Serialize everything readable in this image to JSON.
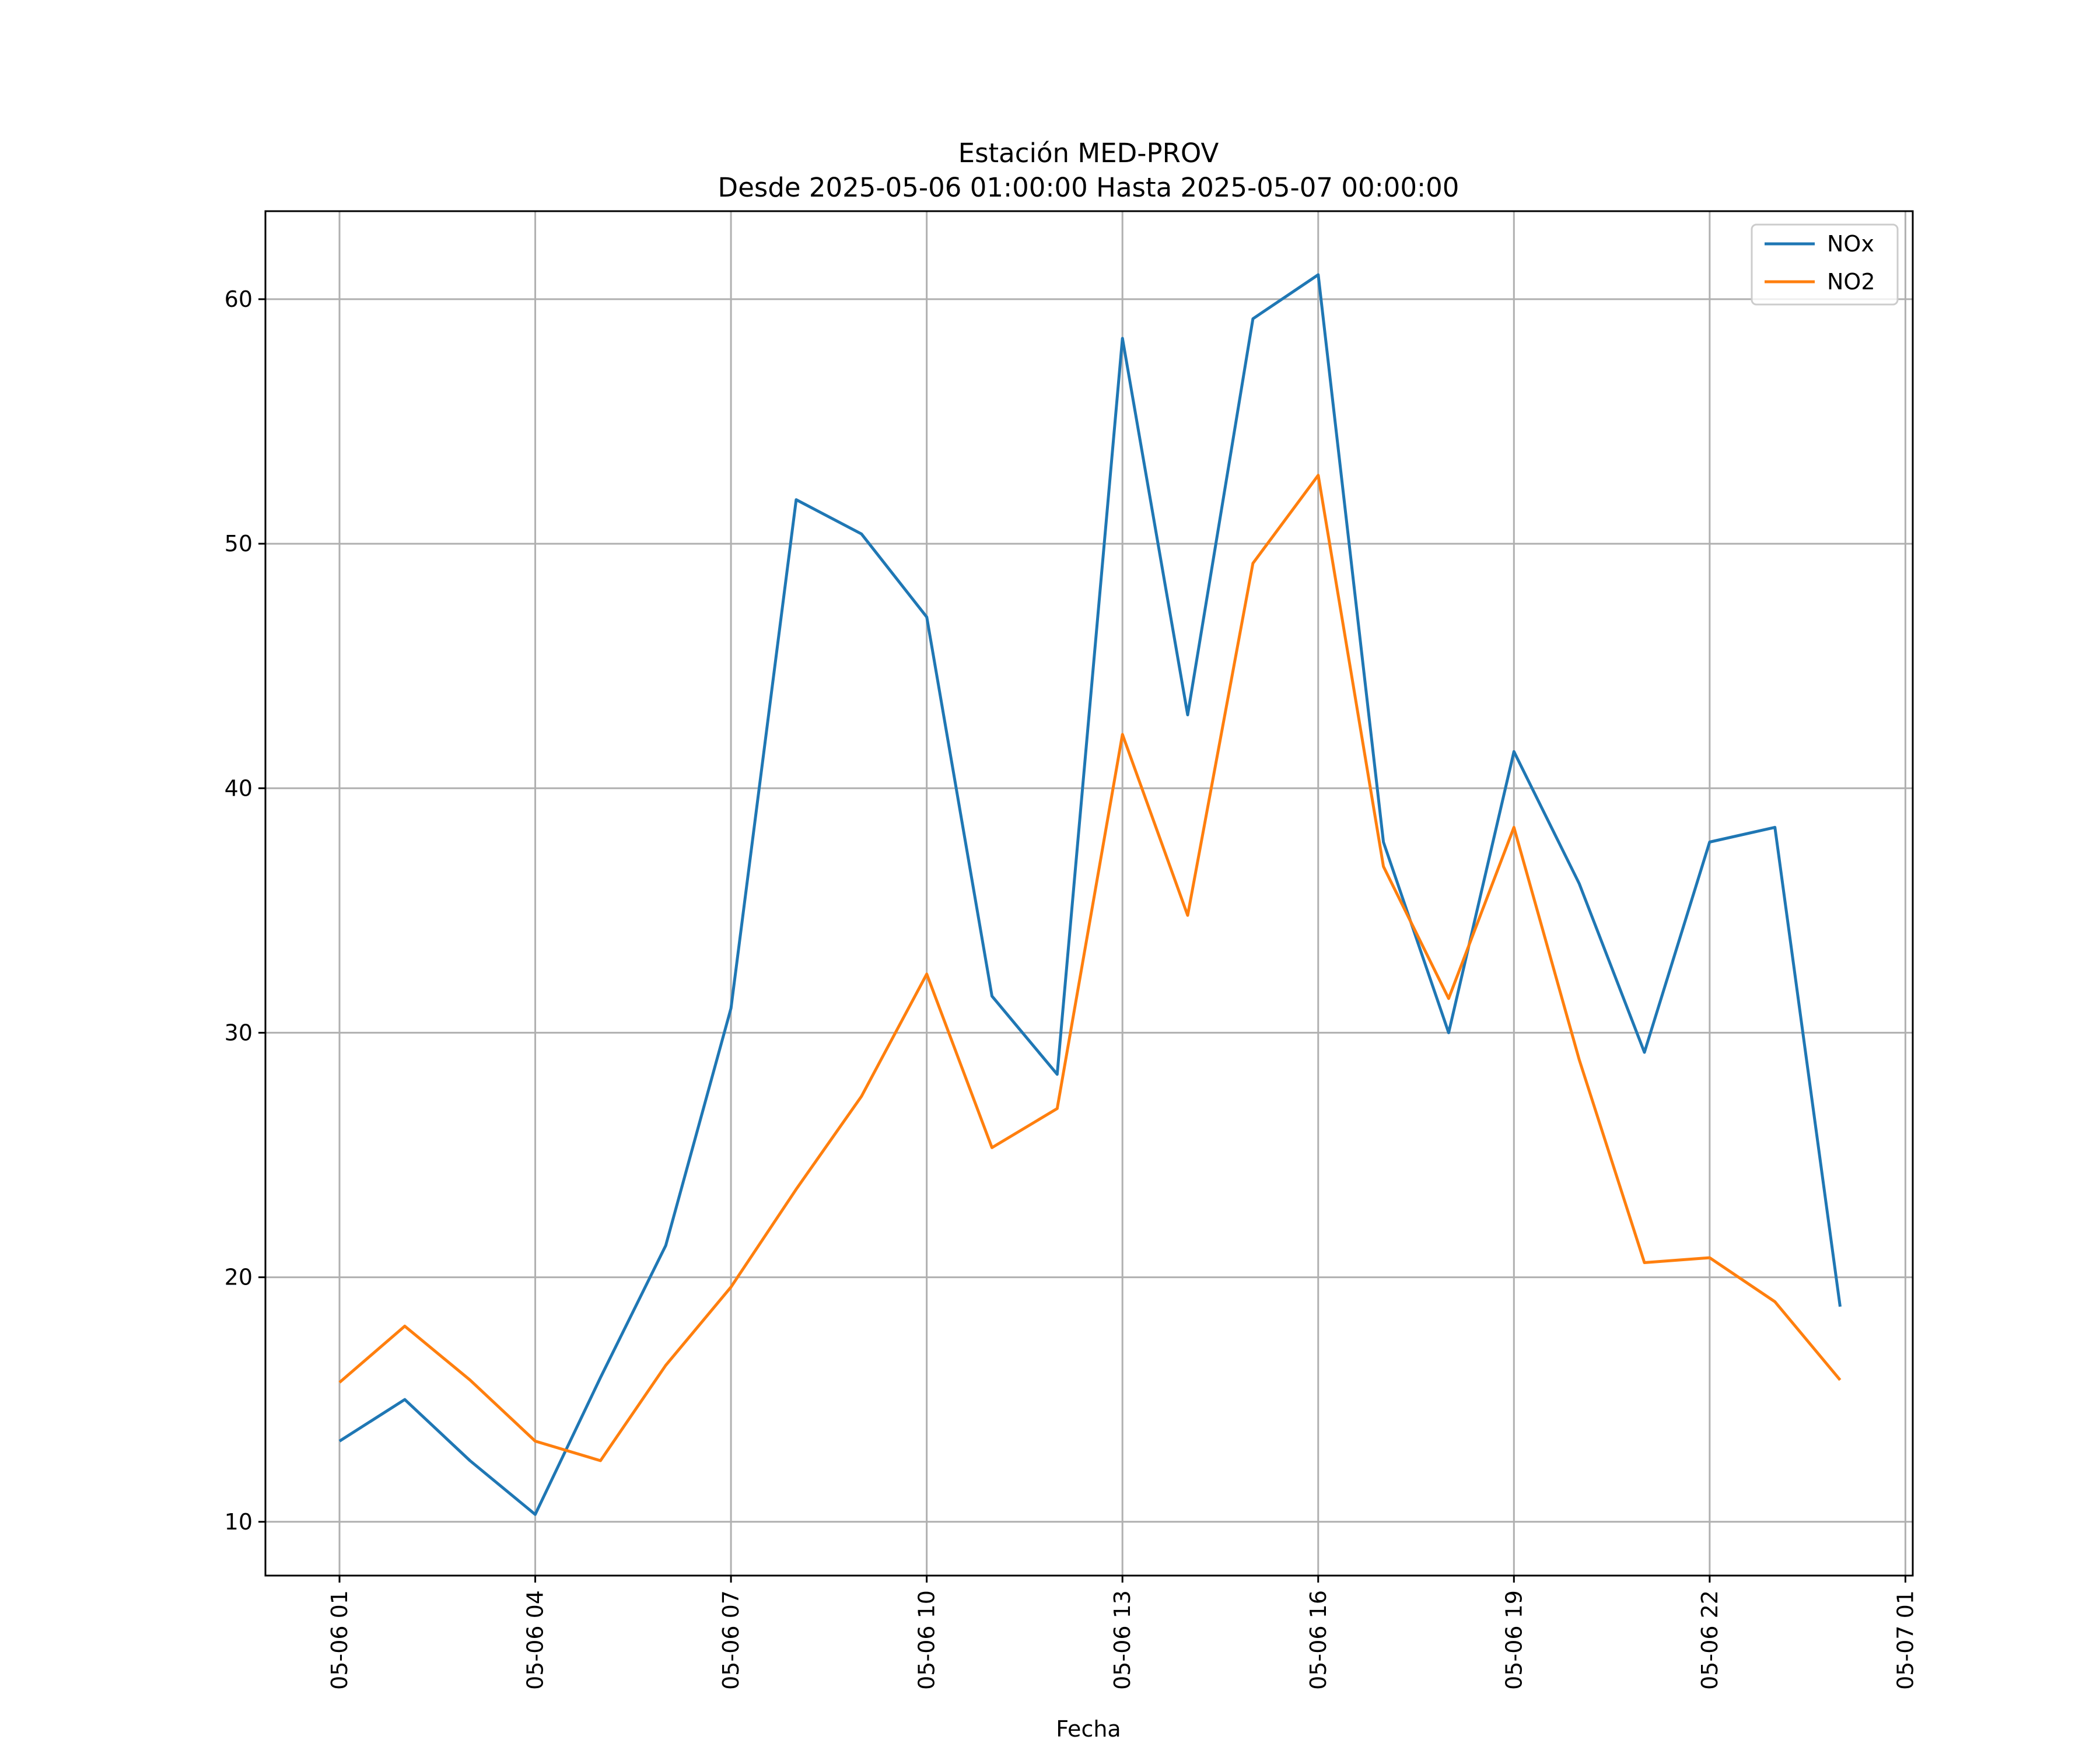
{
  "chart_data": {
    "type": "line",
    "title": "Estación MED-PROV",
    "subtitle": "Desde 2025-05-06 01:00:00 Hasta 2025-05-07 00:00:00",
    "xlabel": "Fecha",
    "ylabel": "",
    "x": [
      "2025-05-06 01:00",
      "2025-05-06 02:00",
      "2025-05-06 03:00",
      "2025-05-06 04:00",
      "2025-05-06 05:00",
      "2025-05-06 06:00",
      "2025-05-06 07:00",
      "2025-05-06 08:00",
      "2025-05-06 09:00",
      "2025-05-06 10:00",
      "2025-05-06 11:00",
      "2025-05-06 12:00",
      "2025-05-06 13:00",
      "2025-05-06 14:00",
      "2025-05-06 15:00",
      "2025-05-06 16:00",
      "2025-05-06 17:00",
      "2025-05-06 18:00",
      "2025-05-06 19:00",
      "2025-05-06 20:00",
      "2025-05-06 21:00",
      "2025-05-06 22:00",
      "2025-05-06 23:00",
      "2025-05-07 00:00"
    ],
    "series": [
      {
        "name": "NOx",
        "color": "#1f77b4",
        "values": [
          13.3,
          15.0,
          12.5,
          10.3,
          15.9,
          21.3,
          31.0,
          51.8,
          50.4,
          47.0,
          31.5,
          28.3,
          58.4,
          43.0,
          59.2,
          61.0,
          37.8,
          30.0,
          41.5,
          36.1,
          29.2,
          37.8,
          38.4,
          18.8
        ]
      },
      {
        "name": "NO2",
        "color": "#ff7f0e",
        "values": [
          15.7,
          18.0,
          15.8,
          13.3,
          12.5,
          16.4,
          19.6,
          23.6,
          27.4,
          32.4,
          25.3,
          26.9,
          42.2,
          34.8,
          49.2,
          52.8,
          36.8,
          31.4,
          38.4,
          28.9,
          20.6,
          20.8,
          19.0,
          15.8
        ]
      }
    ],
    "x_ticks": [
      "05-06 01",
      "05-06 04",
      "05-06 07",
      "05-06 10",
      "05-06 13",
      "05-06 16",
      "05-06 19",
      "05-06 22",
      "05-07 01"
    ],
    "y_ticks": [
      "10",
      "20",
      "30",
      "40",
      "50",
      "60"
    ],
    "ylim": [
      7.8,
      63.6
    ],
    "grid": true,
    "legend": "top-right"
  }
}
